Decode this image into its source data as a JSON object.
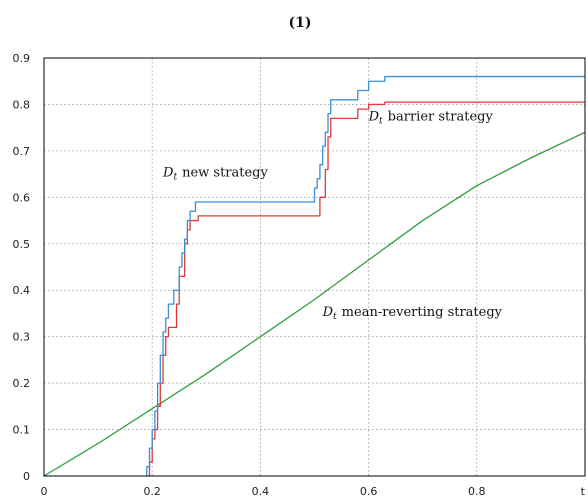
{
  "chart_data": {
    "type": "line",
    "title": "(1)",
    "xlabel": "t",
    "ylabel": "",
    "xlim": [
      0,
      1
    ],
    "ylim": [
      0,
      0.9
    ],
    "x_ticks": [
      "0",
      "0.2",
      "0.4",
      "0.6",
      "0.8"
    ],
    "y_ticks": [
      "0",
      "0.1",
      "0.2",
      "0.3",
      "0.4",
      "0.5",
      "0.6",
      "0.7",
      "0.8",
      "0.9"
    ],
    "grid": true,
    "series": [
      {
        "name": "D_t new strategy",
        "color": "#3a8fd6",
        "points": [
          [
            0.19,
            0
          ],
          [
            0.19,
            0.02
          ],
          [
            0.195,
            0.02
          ],
          [
            0.195,
            0.06
          ],
          [
            0.2,
            0.06
          ],
          [
            0.2,
            0.1
          ],
          [
            0.205,
            0.1
          ],
          [
            0.205,
            0.14
          ],
          [
            0.21,
            0.14
          ],
          [
            0.21,
            0.2
          ],
          [
            0.215,
            0.2
          ],
          [
            0.215,
            0.26
          ],
          [
            0.22,
            0.26
          ],
          [
            0.22,
            0.31
          ],
          [
            0.225,
            0.31
          ],
          [
            0.225,
            0.34
          ],
          [
            0.23,
            0.34
          ],
          [
            0.23,
            0.37
          ],
          [
            0.24,
            0.37
          ],
          [
            0.24,
            0.4
          ],
          [
            0.25,
            0.4
          ],
          [
            0.25,
            0.45
          ],
          [
            0.255,
            0.45
          ],
          [
            0.255,
            0.48
          ],
          [
            0.26,
            0.48
          ],
          [
            0.26,
            0.51
          ],
          [
            0.265,
            0.51
          ],
          [
            0.265,
            0.55
          ],
          [
            0.27,
            0.55
          ],
          [
            0.27,
            0.57
          ],
          [
            0.28,
            0.57
          ],
          [
            0.28,
            0.59
          ],
          [
            0.5,
            0.59
          ],
          [
            0.5,
            0.62
          ],
          [
            0.505,
            0.62
          ],
          [
            0.505,
            0.64
          ],
          [
            0.51,
            0.64
          ],
          [
            0.51,
            0.67
          ],
          [
            0.515,
            0.67
          ],
          [
            0.515,
            0.71
          ],
          [
            0.52,
            0.71
          ],
          [
            0.52,
            0.74
          ],
          [
            0.525,
            0.74
          ],
          [
            0.525,
            0.78
          ],
          [
            0.53,
            0.78
          ],
          [
            0.53,
            0.81
          ],
          [
            0.58,
            0.81
          ],
          [
            0.58,
            0.83
          ],
          [
            0.6,
            0.83
          ],
          [
            0.6,
            0.85
          ],
          [
            0.63,
            0.85
          ],
          [
            0.63,
            0.86
          ],
          [
            1.0,
            0.86
          ]
        ]
      },
      {
        "name": "D_t barrier strategy",
        "color": "#e03a3a",
        "points": [
          [
            0.195,
            0
          ],
          [
            0.195,
            0.03
          ],
          [
            0.2,
            0.03
          ],
          [
            0.2,
            0.08
          ],
          [
            0.205,
            0.08
          ],
          [
            0.205,
            0.1
          ],
          [
            0.21,
            0.1
          ],
          [
            0.21,
            0.15
          ],
          [
            0.215,
            0.15
          ],
          [
            0.215,
            0.2
          ],
          [
            0.22,
            0.2
          ],
          [
            0.22,
            0.26
          ],
          [
            0.225,
            0.26
          ],
          [
            0.225,
            0.3
          ],
          [
            0.23,
            0.3
          ],
          [
            0.23,
            0.32
          ],
          [
            0.245,
            0.32
          ],
          [
            0.245,
            0.37
          ],
          [
            0.25,
            0.37
          ],
          [
            0.25,
            0.43
          ],
          [
            0.26,
            0.43
          ],
          [
            0.26,
            0.5
          ],
          [
            0.265,
            0.5
          ],
          [
            0.265,
            0.53
          ],
          [
            0.27,
            0.53
          ],
          [
            0.27,
            0.55
          ],
          [
            0.285,
            0.55
          ],
          [
            0.285,
            0.56
          ],
          [
            0.51,
            0.56
          ],
          [
            0.51,
            0.6
          ],
          [
            0.52,
            0.6
          ],
          [
            0.52,
            0.66
          ],
          [
            0.525,
            0.66
          ],
          [
            0.525,
            0.73
          ],
          [
            0.53,
            0.73
          ],
          [
            0.53,
            0.77
          ],
          [
            0.58,
            0.77
          ],
          [
            0.58,
            0.79
          ],
          [
            0.6,
            0.79
          ],
          [
            0.6,
            0.8
          ],
          [
            0.63,
            0.8
          ],
          [
            0.63,
            0.805
          ],
          [
            1.0,
            0.805
          ]
        ]
      },
      {
        "name": "D_t mean-reverting strategy",
        "color": "#2f9e3f",
        "points": [
          [
            0,
            0
          ],
          [
            0.1,
            0.07
          ],
          [
            0.2,
            0.145
          ],
          [
            0.3,
            0.22
          ],
          [
            0.4,
            0.3
          ],
          [
            0.5,
            0.38
          ],
          [
            0.6,
            0.465
          ],
          [
            0.7,
            0.55
          ],
          [
            0.8,
            0.625
          ],
          [
            0.9,
            0.685
          ],
          [
            1.0,
            0.74
          ]
        ]
      }
    ],
    "annotations": [
      {
        "math": "D_t",
        "text": "new strategy",
        "x": 0.22,
        "y": 0.645
      },
      {
        "math": "D_t",
        "text": "barrier strategy",
        "x": 0.6,
        "y": 0.765
      },
      {
        "math": "D_t",
        "text": "mean-reverting strategy",
        "x": 0.515,
        "y": 0.345
      }
    ]
  }
}
